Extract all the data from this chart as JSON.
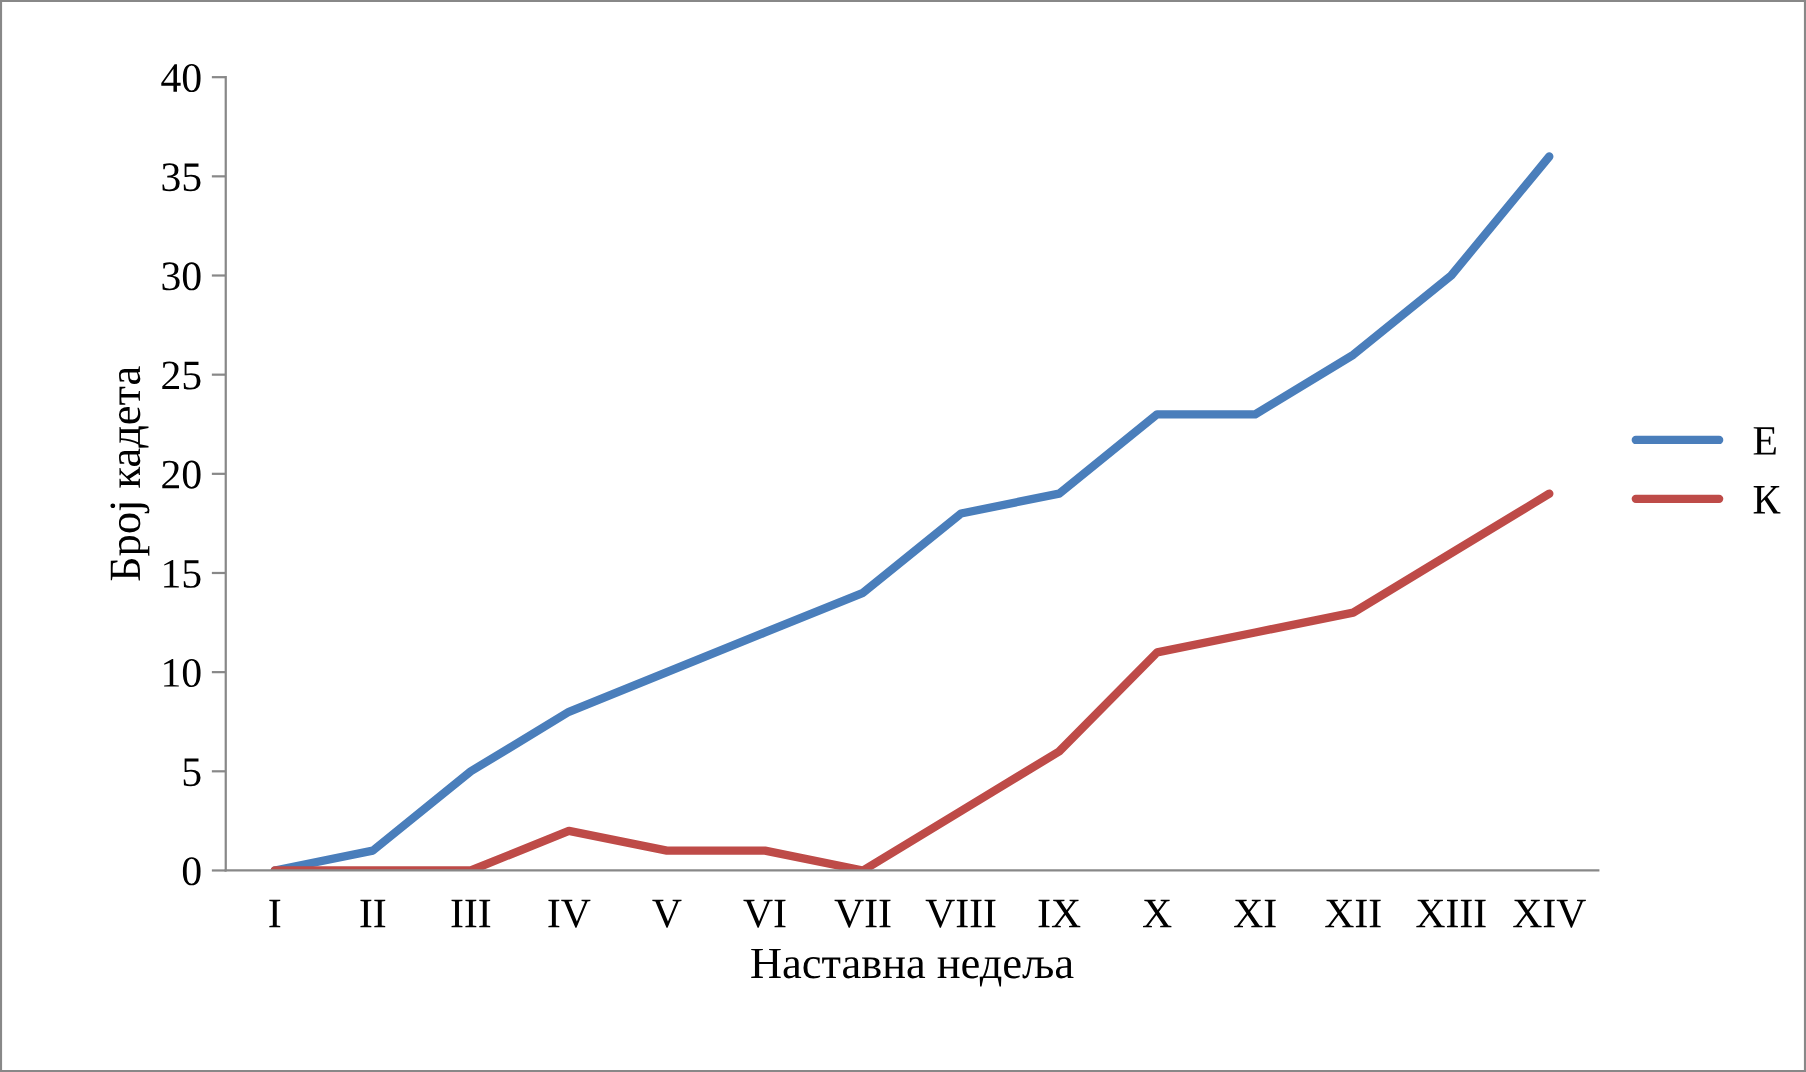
{
  "chart_data": {
    "type": "line",
    "xlabel": "Наставна недеља",
    "ylabel": "Број кадета",
    "categories": [
      "I",
      "II",
      "III",
      "IV",
      "V",
      "VI",
      "VII",
      "VIII",
      "IX",
      "X",
      "XI",
      "XII",
      "XIII",
      "XIV"
    ],
    "series": [
      {
        "name": "Е",
        "color": "#4a7ebb",
        "values": [
          0,
          1,
          5,
          8,
          10,
          12,
          14,
          18,
          19,
          23,
          23,
          26,
          30,
          36
        ]
      },
      {
        "name": "К",
        "color": "#be4b48",
        "values": [
          0,
          0,
          0,
          2,
          1,
          1,
          0,
          3,
          6,
          11,
          12,
          13,
          16,
          19
        ]
      }
    ],
    "ylim": [
      0,
      40
    ],
    "yticks": [
      0,
      5,
      10,
      15,
      20,
      25,
      30,
      35,
      40
    ],
    "grid": false,
    "legend": "right",
    "marker": "none",
    "line_style": "solid"
  }
}
